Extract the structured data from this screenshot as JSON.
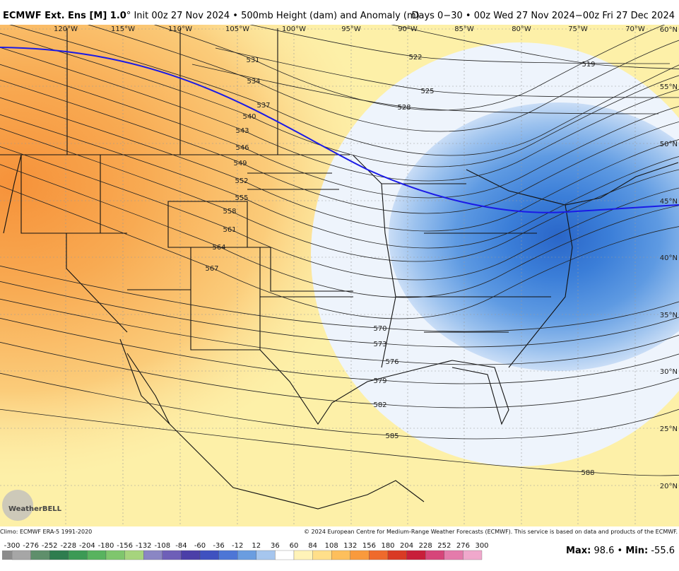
{
  "header": {
    "title_bold": "ECMWF Ext. Ens [M] 1.0",
    "title_rest": "° Init 00z 27 Nov 2024 • 500mb Height (dam) and Anomaly (m)",
    "subtitle": "Days 0−30 • 00z Wed 27 Nov 2024−00z Fri 27 Dec 2024"
  },
  "map": {
    "lon_labels": [
      "120°W",
      "115°W",
      "110°W",
      "105°W",
      "100°W",
      "95°W",
      "90°W",
      "85°W",
      "80°W",
      "75°W",
      "70°W"
    ],
    "lat_labels": [
      "60°N",
      "55°N",
      "50°N",
      "45°N",
      "40°N",
      "35°N",
      "30°N",
      "25°N",
      "20°N"
    ],
    "contour_labels": [
      522,
      519,
      525,
      528,
      531,
      534,
      537,
      540,
      543,
      546,
      549,
      552,
      555,
      558,
      561,
      564,
      567,
      570,
      573,
      576,
      579,
      582,
      585,
      588
    ],
    "logo": "WeatherBELL"
  },
  "footer": {
    "climo": "Climo: ECMWF ERA-5 1991-2020",
    "copyright": "© 2024 European Centre for Medium-Range Weather Forecasts (ECMWF). This service is based on data and products of the ECMWF.",
    "colorbar_ticks": [
      -300,
      -276,
      -252,
      -228,
      -204,
      -180,
      -156,
      -132,
      -108,
      -84,
      -60,
      -36,
      -12,
      12,
      36,
      60,
      84,
      108,
      132,
      156,
      180,
      204,
      228,
      252,
      276,
      300
    ],
    "max_label": "Max:",
    "max": 98.6,
    "separator": "•",
    "min_label": "Min:",
    "min": -55.6
  }
}
